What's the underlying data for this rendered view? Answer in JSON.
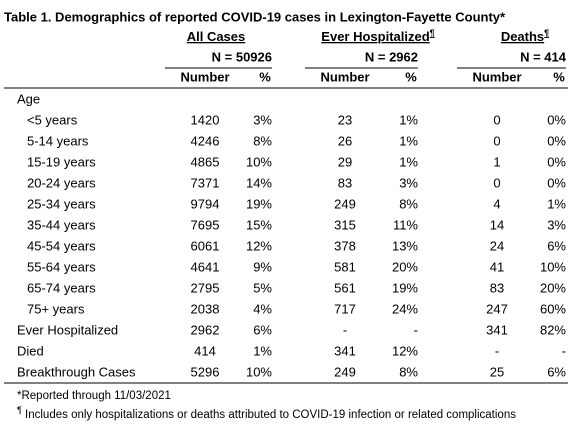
{
  "title": "Table 1. Demographics of reported COVID-19 cases in Lexington-Fayette County*",
  "groups": [
    {
      "label": "All Cases",
      "n": "N = 50926"
    },
    {
      "label": "Ever Hospitalized",
      "mark": "¶",
      "n": "N = 2962"
    },
    {
      "label": "Deaths",
      "mark": "¶",
      "n": "N = 414"
    }
  ],
  "subheaders": [
    "Number",
    "%",
    "Number",
    "%",
    "Number",
    "%"
  ],
  "section": "Age",
  "age_rows": [
    [
      "<5 years",
      "1420",
      "3%",
      "23",
      "1%",
      "0",
      "0%"
    ],
    [
      "5-14 years",
      "4246",
      "8%",
      "26",
      "1%",
      "0",
      "0%"
    ],
    [
      "15-19 years",
      "4865",
      "10%",
      "29",
      "1%",
      "1",
      "0%"
    ],
    [
      "20-24 years",
      "7371",
      "14%",
      "83",
      "3%",
      "0",
      "0%"
    ],
    [
      "25-34 years",
      "9794",
      "19%",
      "249",
      "8%",
      "4",
      "1%"
    ],
    [
      "35-44 years",
      "7695",
      "15%",
      "315",
      "11%",
      "14",
      "3%"
    ],
    [
      "45-54 years",
      "6061",
      "12%",
      "378",
      "13%",
      "24",
      "6%"
    ],
    [
      "55-64 years",
      "4641",
      "9%",
      "581",
      "20%",
      "41",
      "10%"
    ],
    [
      "65-74 years",
      "2795",
      "5%",
      "561",
      "19%",
      "83",
      "20%"
    ],
    [
      "75+ years",
      "2038",
      "4%",
      "717",
      "24%",
      "247",
      "60%"
    ]
  ],
  "other_rows": [
    [
      "Ever Hospitalized",
      "2962",
      "6%",
      "-",
      "-",
      "341",
      "82%"
    ],
    [
      "Died",
      "414",
      "1%",
      "341",
      "12%",
      "-",
      "-"
    ],
    [
      "Breakthrough Cases",
      "5296",
      "10%",
      "249",
      "8%",
      "25",
      "6%"
    ]
  ],
  "footnotes": [
    {
      "text": "*Reported through 11/03/2021"
    },
    {
      "mark": "¶",
      "text": " Includes only hospitalizations or deaths attributed to COVID-19 infection or related complications"
    }
  ]
}
